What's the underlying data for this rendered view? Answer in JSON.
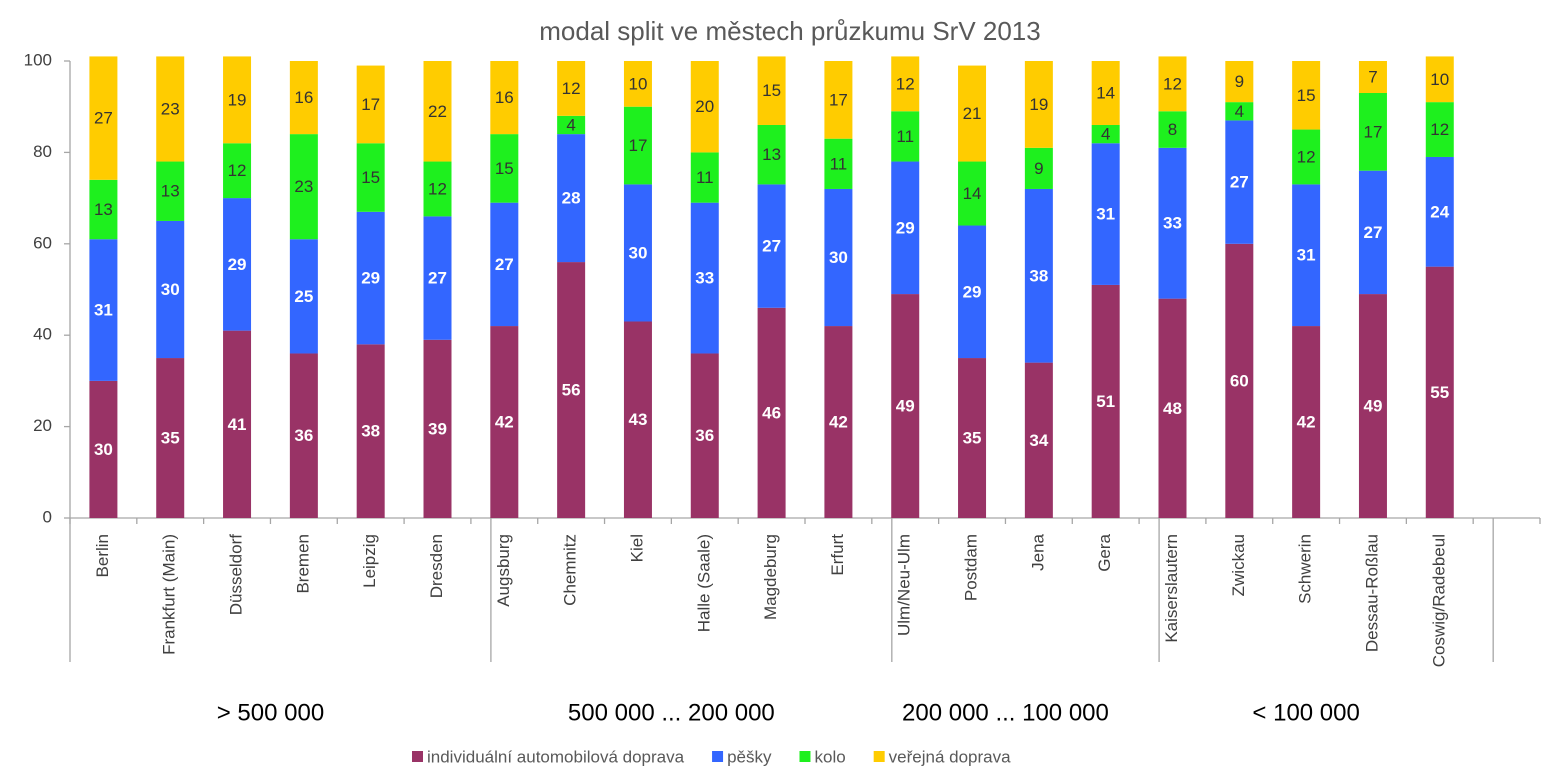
{
  "chart_data": {
    "type": "stacked_bar",
    "title": "modal split ve městech průzkumu SrV 2013",
    "groups": [
      {
        "label": "> 500 000",
        "categories": [
          "Berlin",
          "Frankfurt (Main)",
          "Düsseldorf",
          "Bremen",
          "Leipzig",
          "Dresden"
        ]
      },
      {
        "label": "500 000 ... 200 000",
        "categories": [
          "Augsburg",
          "Chemnitz",
          "Kiel",
          "Halle (Saale)",
          "Magdeburg",
          "Erfurt"
        ]
      },
      {
        "label": "200 000 ... 100 000",
        "categories": [
          "Ulm/Neu-Ulm",
          "Postdam",
          "Jena",
          "Gera"
        ]
      },
      {
        "label": "< 100 000",
        "categories": [
          "Kaiserslautern",
          "Zwickau",
          "Schwerin",
          "Dessau-Roßlau",
          "Coswig/Radebeul"
        ]
      }
    ],
    "series": [
      {
        "name": "individuální automobilová doprava",
        "color": "#993366",
        "values": [
          30,
          35,
          41,
          36,
          38,
          39,
          42,
          56,
          43,
          36,
          46,
          42,
          49,
          35,
          34,
          51,
          48,
          60,
          42,
          49,
          55
        ]
      },
      {
        "name": "pěšky",
        "color": "#3366ff",
        "values": [
          31,
          30,
          29,
          25,
          29,
          27,
          27,
          28,
          30,
          33,
          27,
          30,
          29,
          29,
          38,
          31,
          33,
          27,
          31,
          27,
          24
        ]
      },
      {
        "name": "kolo",
        "color": "#1ef01e",
        "values": [
          13,
          13,
          12,
          23,
          15,
          12,
          15,
          4,
          17,
          11,
          13,
          11,
          11,
          14,
          9,
          4,
          8,
          4,
          12,
          17,
          12
        ]
      },
      {
        "name": "veřejná doprava",
        "color": "#ffcc00",
        "values": [
          27,
          23,
          19,
          16,
          17,
          22,
          16,
          12,
          10,
          20,
          15,
          17,
          12,
          21,
          19,
          14,
          12,
          9,
          15,
          7,
          10
        ]
      }
    ],
    "ylim": [
      0,
      100
    ],
    "yticks": [
      0,
      20,
      40,
      60,
      80,
      100
    ],
    "legend": "bottom"
  }
}
